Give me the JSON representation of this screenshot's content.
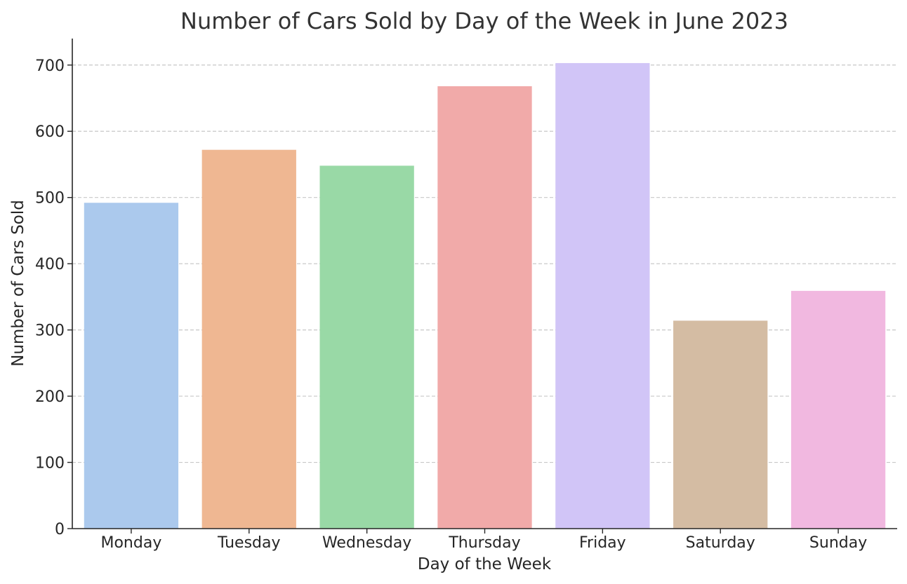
{
  "chart_data": {
    "type": "bar",
    "title": "Number of Cars Sold by Day of the Week in June 2023",
    "xlabel": "Day of the Week",
    "ylabel": "Number of Cars Sold",
    "categories": [
      "Monday",
      "Tuesday",
      "Wednesday",
      "Thursday",
      "Friday",
      "Saturday",
      "Sunday"
    ],
    "values": [
      492,
      572,
      548,
      668,
      703,
      314,
      359
    ],
    "colors": [
      "#abc9ed",
      "#efb792",
      "#99d9a6",
      "#f1aaa9",
      "#d1c5f7",
      "#d4bca3",
      "#f1b8e0"
    ],
    "ylim": [
      0,
      740
    ],
    "yticks": [
      0,
      100,
      200,
      300,
      400,
      500,
      600,
      700
    ],
    "grid": true,
    "grid_axis": "y",
    "legend": "none"
  }
}
